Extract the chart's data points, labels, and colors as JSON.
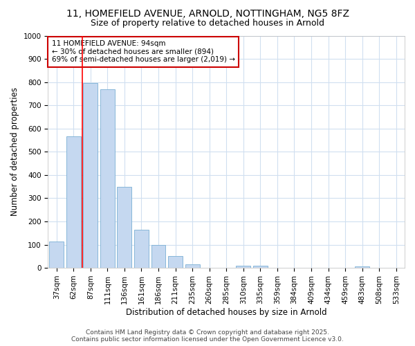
{
  "title1": "11, HOMEFIELD AVENUE, ARNOLD, NOTTINGHAM, NG5 8FZ",
  "title2": "Size of property relative to detached houses in Arnold",
  "xlabel": "Distribution of detached houses by size in Arnold",
  "ylabel": "Number of detached properties",
  "categories": [
    "37sqm",
    "62sqm",
    "87sqm",
    "111sqm",
    "136sqm",
    "161sqm",
    "186sqm",
    "211sqm",
    "235sqm",
    "260sqm",
    "285sqm",
    "310sqm",
    "335sqm",
    "359sqm",
    "384sqm",
    "409sqm",
    "434sqm",
    "459sqm",
    "483sqm",
    "508sqm",
    "533sqm"
  ],
  "values": [
    115,
    565,
    795,
    770,
    350,
    165,
    100,
    52,
    15,
    0,
    0,
    10,
    10,
    0,
    0,
    0,
    0,
    0,
    5,
    0,
    0
  ],
  "bar_color": "#c5d8f0",
  "bar_edge_color": "#7aafd4",
  "red_line_index": 2,
  "ylim": [
    0,
    1000
  ],
  "yticks": [
    0,
    100,
    200,
    300,
    400,
    500,
    600,
    700,
    800,
    900,
    1000
  ],
  "annotation_title": "11 HOMEFIELD AVENUE: 94sqm",
  "annotation_line1": "← 30% of detached houses are smaller (894)",
  "annotation_line2": "69% of semi-detached houses are larger (2,019) →",
  "annotation_box_color": "#ffffff",
  "annotation_border_color": "#cc0000",
  "footer1": "Contains HM Land Registry data © Crown copyright and database right 2025.",
  "footer2": "Contains public sector information licensed under the Open Government Licence v3.0.",
  "background_color": "#ffffff",
  "plot_bg_color": "#ffffff",
  "grid_color": "#d0dff0",
  "title1_fontsize": 10,
  "title2_fontsize": 9,
  "axis_fontsize": 8.5,
  "tick_fontsize": 7.5,
  "footer_fontsize": 6.5
}
